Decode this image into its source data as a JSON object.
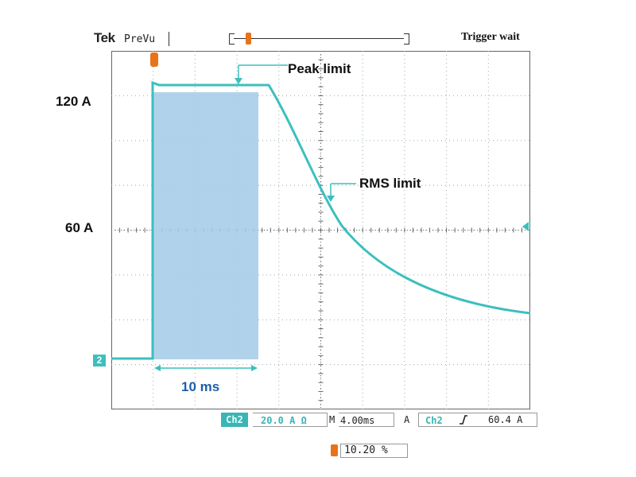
{
  "header": {
    "brand": "Tek",
    "mode": "PreVu",
    "trigger_status": "Trigger wait"
  },
  "y_labels": {
    "high": "120 A",
    "mid": "60 A"
  },
  "annotations": {
    "peak": "Peak limit",
    "rms": "RMS limit",
    "duration": "10 ms"
  },
  "channel_marker": "2",
  "readouts": {
    "channel": "Ch2",
    "scale": "20.0 A Ω",
    "time_prefix": "M",
    "timebase": "4.00ms",
    "mode": "A",
    "trigger_channel": "Ch2",
    "trigger_level": "60.4 A"
  },
  "position": {
    "value": "10.20 %"
  },
  "colors": {
    "trace": "#3cbfbf",
    "shaded_region": "#a9cde9",
    "marker": "#e8731a",
    "annotation_blue": "#1f5fa8"
  },
  "icons": {
    "trigger_position": "trigger-position-marker-icon",
    "trigger_level": "trigger-level-arrow-icon",
    "slope": "rising-edge-icon"
  }
}
